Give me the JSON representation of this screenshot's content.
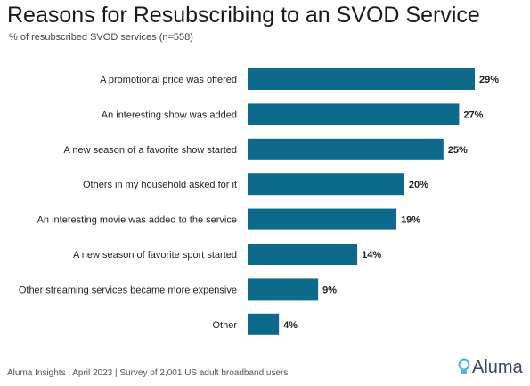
{
  "title": "Reasons for Resubscribing to an SVOD Service",
  "subtitle": "% of resubscribed SVOD services (n=558)",
  "footer": "Aluma Insights | April 2023 | Survey of 2,001 US adult broadband users",
  "logo": "Aluma",
  "colors": {
    "bar": "#0e6a8a",
    "logo_icon": "#4db6d8",
    "logo_text": "#3a4a5a"
  },
  "chart_data": {
    "type": "bar",
    "orientation": "horizontal",
    "categories": [
      "A promotional price was offered",
      "An interesting show was added",
      "A new season of a favorite show started",
      "Others in my household asked for it",
      "An interesting movie was added to the service",
      "A new season of favorite sport started",
      "Other streaming services became more expensive",
      "Other"
    ],
    "values": [
      29,
      27,
      25,
      20,
      19,
      14,
      9,
      4
    ],
    "labels": [
      "29%",
      "27%",
      "25%",
      "20%",
      "19%",
      "14%",
      "9%",
      "4%"
    ],
    "xlim": [
      0,
      29
    ],
    "grid": false,
    "legend": "none"
  }
}
